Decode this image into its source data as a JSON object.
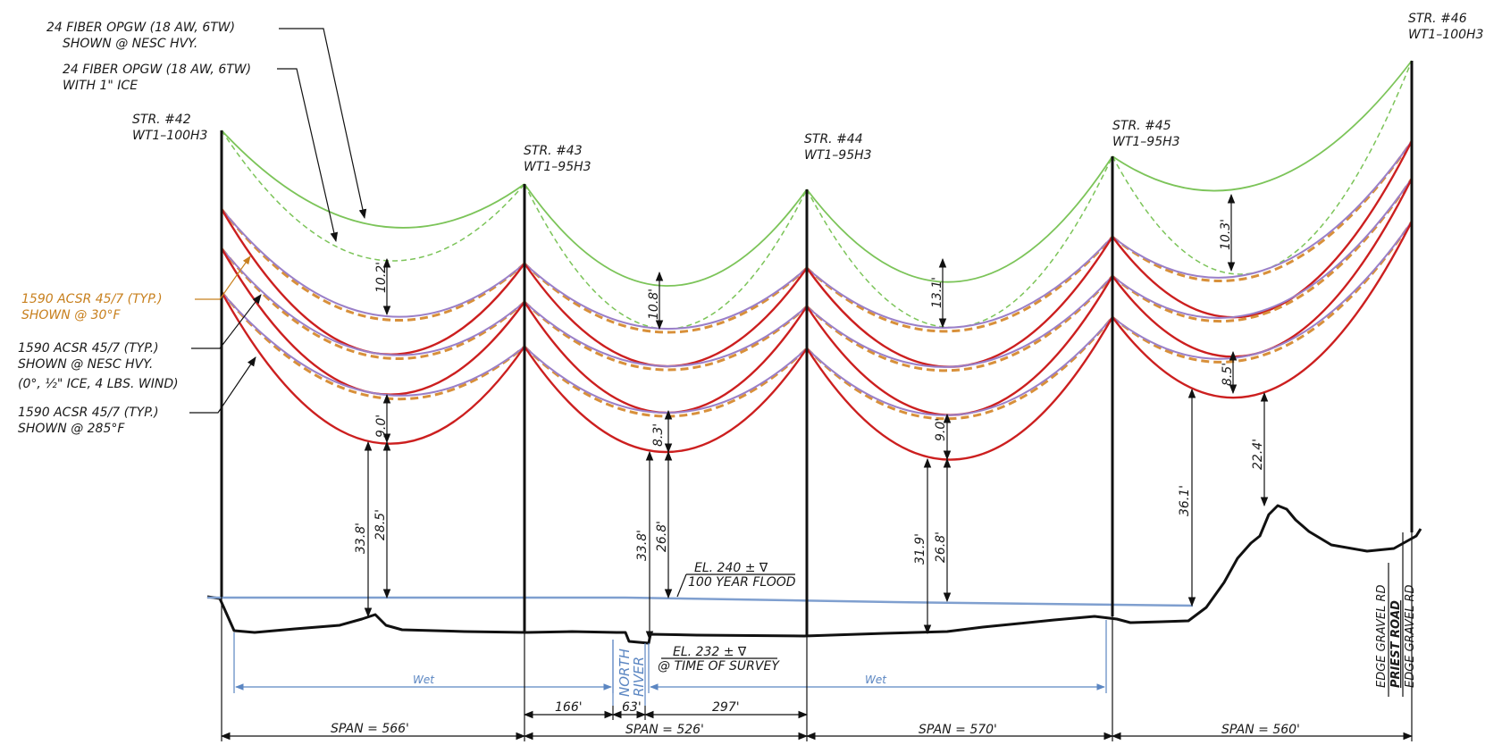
{
  "structures": [
    {
      "label": "STR. #42",
      "type": "WT1–100H3"
    },
    {
      "label": "STR. #43",
      "type": "WT1–95H3"
    },
    {
      "label": "STR. #44",
      "type": "WT1–95H3"
    },
    {
      "label": "STR. #45",
      "type": "WT1–95H3"
    },
    {
      "label": "STR. #46",
      "type": "WT1–100H3"
    }
  ],
  "callouts": {
    "opgw_nesc": [
      "24 FIBER OPGW (18 AW, 6TW)",
      "SHOWN @ NESC HVY."
    ],
    "opgw_ice": [
      "24 FIBER OPGW (18 AW, 6TW)",
      "WITH 1\" ICE"
    ],
    "acsr_30f": [
      "1590 ACSR 45/7 (TYP.)",
      "SHOWN @ 30°F"
    ],
    "acsr_nesc": [
      "1590 ACSR 45/7 (TYP.)",
      "SHOWN @ NESC HVY.",
      "(0°, ½\" ICE, 4 LBS. WIND)"
    ],
    "acsr_285f": [
      "1590 ACSR 45/7 (TYP.)",
      "SHOWN @ 285°F"
    ]
  },
  "clearances": {
    "span1": {
      "shield": "10.2'",
      "conductor": "9.0'",
      "ground_a": "33.8'",
      "ground_b": "28.5'"
    },
    "span2": {
      "shield": "10.8'",
      "conductor": "8.3'",
      "ground_a": "33.8'",
      "ground_b": "26.8'"
    },
    "span3": {
      "shield": "13.1'",
      "conductor": "9.0'",
      "ground_a": "31.9'",
      "ground_b": "26.8'"
    },
    "span4": {
      "shield": "10.3'",
      "conductor": "8.5'",
      "ground_a": "36.1'",
      "ground_b": "22.4'"
    }
  },
  "elevations": {
    "flood": [
      "EL. 240 ± ∇",
      "100 YEAR FLOOD"
    ],
    "survey": [
      "EL. 232 ± ∇",
      "@ TIME OF SURVEY"
    ]
  },
  "wetlands": [
    "Wet",
    "Wet"
  ],
  "river": [
    "NORTH",
    "RIVER"
  ],
  "roads": [
    "EDGE GRAVEL RD",
    "PRIEST ROAD",
    "EDGE GRAVEL RD"
  ],
  "sub_spans": [
    "166'",
    "63'",
    "297'"
  ],
  "spans": [
    "SPAN = 566'",
    "SPAN = 526'",
    "SPAN = 570'",
    "SPAN = 560'"
  ],
  "colors": {
    "shield_wire": "#7cc459",
    "conductor_hot": "#cc1f1f",
    "conductor_nesc": "#9a7fc8",
    "conductor_30f": "#d8903a",
    "flood_line": "#7f9fcf",
    "wetland": "#5b86c2",
    "orange_label": "#c8801e"
  }
}
